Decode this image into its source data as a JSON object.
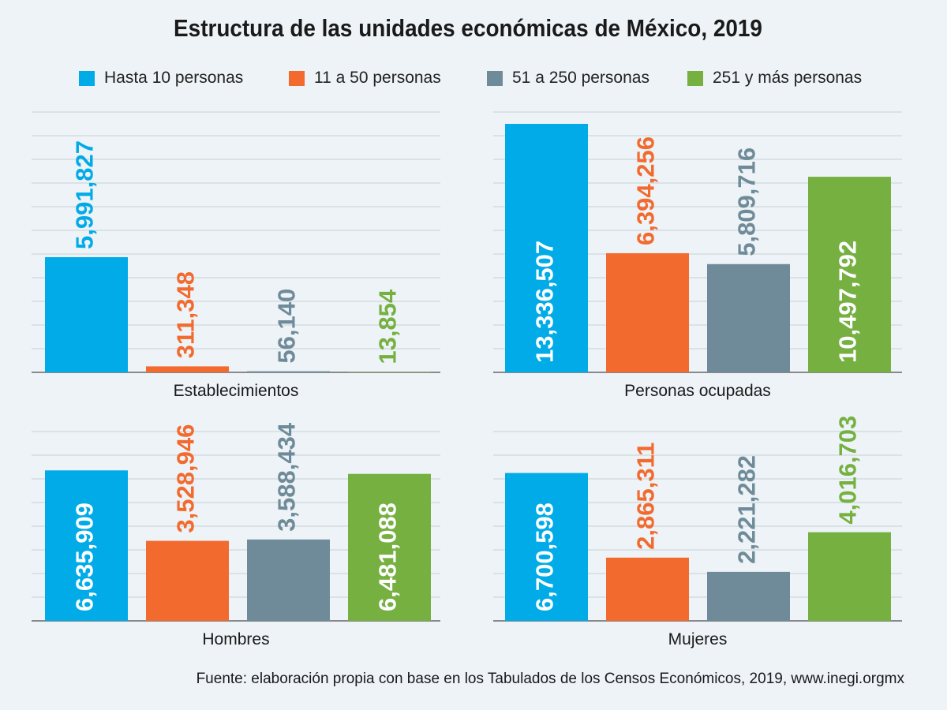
{
  "chart_data": [
    {
      "type": "bar",
      "xlabel": "Establecimientos",
      "categories": [
        "Hasta 10 personas",
        "11 a 50 personas",
        "51 a 250 personas",
        "251 y más personas"
      ],
      "values": [
        5991827,
        311348,
        56140,
        13854
      ],
      "value_labels": [
        "5,991,827",
        "311,348",
        "56,140",
        "13,854"
      ],
      "ylim": [
        0,
        13500000
      ],
      "grid": true
    },
    {
      "type": "bar",
      "xlabel": "Personas ocupadas",
      "categories": [
        "Hasta 10 personas",
        "11 a 50 personas",
        "51 a 250 personas",
        "251 y más personas"
      ],
      "values": [
        13336507,
        6394256,
        5809716,
        10497792
      ],
      "value_labels": [
        "13,336,507",
        "6,394,256",
        "5,809,716",
        "10,497,792"
      ],
      "ylim": [
        0,
        13930000
      ],
      "grid": true
    },
    {
      "type": "bar",
      "xlabel": "Hombres",
      "categories": [
        "Hasta 10 personas",
        "11 a 50 personas",
        "51 a 250 personas",
        "251 y más personas"
      ],
      "values": [
        6635909,
        3528946,
        3588434,
        6481088
      ],
      "value_labels": [
        "6,635,909",
        "3,528,946",
        "3,588,434",
        "6,481,088"
      ],
      "ylim": [
        0,
        8350000
      ],
      "grid": true
    },
    {
      "type": "bar",
      "xlabel": "Mujeres",
      "categories": [
        "Hasta 10 personas",
        "11 a 50 personas",
        "51 a 250 personas",
        "251 y más personas"
      ],
      "values": [
        6700598,
        2865311,
        2221282,
        4016703
      ],
      "value_labels": [
        "6,700,598",
        "2,865,311",
        "2,221,282",
        "4,016,703"
      ],
      "ylim": [
        0,
        8580000
      ],
      "grid": true
    }
  ],
  "title": "Estructura de las unidades económicas de México, 2019",
  "legend": {
    "placement": "top",
    "items": [
      {
        "label": "Hasta 10 personas",
        "color": "#00abe8"
      },
      {
        "label": "11 a 50 personas",
        "color": "#f26a2d"
      },
      {
        "label": "51 a 250 personas",
        "color": "#6f8b99"
      },
      {
        "label": "251 y más personas",
        "color": "#76b041"
      }
    ]
  },
  "source_note": "Fuente: elaboración propia con base en los Tabulados de los Censos Económicos, 2019, www.inegi.orgmx",
  "colors": {
    "background": "#edf3f7",
    "gridline": "#c8d0d5",
    "axis": "#666666",
    "label_on_bar": "#ffffff"
  }
}
